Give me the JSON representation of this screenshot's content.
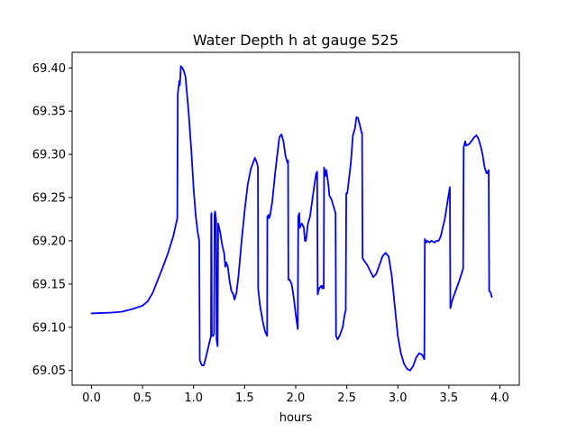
{
  "chart_data": {
    "type": "line",
    "title": "Water Depth h at gauge 525",
    "xlabel": "hours",
    "ylabel": "",
    "xlim": [
      -0.19,
      4.19
    ],
    "ylim": [
      69.033,
      69.418
    ],
    "xticks": [
      0.0,
      0.5,
      1.0,
      1.5,
      2.0,
      2.5,
      3.0,
      3.5,
      4.0
    ],
    "xtick_labels": [
      "0.0",
      "0.5",
      "1.0",
      "1.5",
      "2.0",
      "2.5",
      "3.0",
      "3.5",
      "4.0"
    ],
    "yticks": [
      69.05,
      69.1,
      69.15,
      69.2,
      69.25,
      69.3,
      69.35,
      69.4
    ],
    "ytick_labels": [
      "69.05",
      "69.10",
      "69.15",
      "69.20",
      "69.25",
      "69.30",
      "69.35",
      "69.40"
    ],
    "grid": false,
    "series": [
      {
        "color": "#0000ff",
        "points": [
          [
            0.0,
            69.116
          ],
          [
            0.2,
            69.117
          ],
          [
            0.3,
            69.118
          ],
          [
            0.4,
            69.121
          ],
          [
            0.5,
            69.125
          ],
          [
            0.55,
            69.13
          ],
          [
            0.6,
            69.14
          ],
          [
            0.65,
            69.155
          ],
          [
            0.7,
            69.17
          ],
          [
            0.75,
            69.186
          ],
          [
            0.8,
            69.205
          ],
          [
            0.84,
            69.226
          ],
          [
            0.845,
            69.37
          ],
          [
            0.855,
            69.38
          ],
          [
            0.86,
            69.385
          ],
          [
            0.865,
            69.38
          ],
          [
            0.87,
            69.39
          ],
          [
            0.875,
            69.402
          ],
          [
            0.9,
            69.398
          ],
          [
            0.92,
            69.39
          ],
          [
            0.95,
            69.35
          ],
          [
            0.98,
            69.3
          ],
          [
            1.0,
            69.26
          ],
          [
            1.02,
            69.23
          ],
          [
            1.04,
            69.21
          ],
          [
            1.055,
            69.2
          ],
          [
            1.06,
            69.062
          ],
          [
            1.08,
            69.056
          ],
          [
            1.1,
            69.056
          ],
          [
            1.12,
            69.065
          ],
          [
            1.15,
            69.08
          ],
          [
            1.17,
            69.09
          ],
          [
            1.172,
            69.23
          ],
          [
            1.175,
            69.232
          ],
          [
            1.178,
            69.09
          ],
          [
            1.19,
            69.09
          ],
          [
            1.2,
            69.092
          ],
          [
            1.205,
            69.23
          ],
          [
            1.21,
            69.234
          ],
          [
            1.22,
            69.225
          ],
          [
            1.225,
            69.085
          ],
          [
            1.235,
            69.078
          ],
          [
            1.24,
            69.22
          ],
          [
            1.26,
            69.21
          ],
          [
            1.28,
            69.195
          ],
          [
            1.3,
            69.185
          ],
          [
            1.31,
            69.17
          ],
          [
            1.32,
            69.175
          ],
          [
            1.335,
            69.17
          ],
          [
            1.35,
            69.155
          ],
          [
            1.37,
            69.142
          ],
          [
            1.39,
            69.138
          ],
          [
            1.4,
            69.132
          ],
          [
            1.42,
            69.14
          ],
          [
            1.44,
            69.16
          ],
          [
            1.47,
            69.2
          ],
          [
            1.5,
            69.235
          ],
          [
            1.53,
            69.265
          ],
          [
            1.56,
            69.283
          ],
          [
            1.6,
            69.296
          ],
          [
            1.62,
            69.29
          ],
          [
            1.63,
            69.285
          ],
          [
            1.632,
            69.145
          ],
          [
            1.65,
            69.125
          ],
          [
            1.68,
            69.105
          ],
          [
            1.7,
            69.095
          ],
          [
            1.72,
            69.09
          ],
          [
            1.722,
            69.228
          ],
          [
            1.735,
            69.23
          ],
          [
            1.74,
            69.226
          ],
          [
            1.75,
            69.23
          ],
          [
            1.77,
            69.245
          ],
          [
            1.8,
            69.28
          ],
          [
            1.82,
            69.3
          ],
          [
            1.84,
            69.32
          ],
          [
            1.86,
            69.323
          ],
          [
            1.88,
            69.315
          ],
          [
            1.9,
            69.298
          ],
          [
            1.92,
            69.29
          ],
          [
            1.925,
            69.293
          ],
          [
            1.928,
            69.155
          ],
          [
            1.94,
            69.155
          ],
          [
            1.96,
            69.15
          ],
          [
            1.98,
            69.135
          ],
          [
            2.0,
            69.115
          ],
          [
            2.02,
            69.098
          ],
          [
            2.025,
            69.228
          ],
          [
            2.035,
            69.232
          ],
          [
            2.04,
            69.215
          ],
          [
            2.06,
            69.22
          ],
          [
            2.08,
            69.215
          ],
          [
            2.09,
            69.2
          ],
          [
            2.1,
            69.2
          ],
          [
            2.12,
            69.22
          ],
          [
            2.14,
            69.228
          ],
          [
            2.16,
            69.245
          ],
          [
            2.18,
            69.262
          ],
          [
            2.2,
            69.278
          ],
          [
            2.21,
            69.28
          ],
          [
            2.215,
            69.138
          ],
          [
            2.23,
            69.145
          ],
          [
            2.25,
            69.148
          ],
          [
            2.26,
            69.145
          ],
          [
            2.265,
            69.148
          ],
          [
            2.275,
            69.145
          ],
          [
            2.278,
            69.285
          ],
          [
            2.29,
            69.275
          ],
          [
            2.3,
            69.282
          ],
          [
            2.32,
            69.265
          ],
          [
            2.33,
            69.252
          ],
          [
            2.35,
            69.248
          ],
          [
            2.37,
            69.24
          ],
          [
            2.39,
            69.232
          ],
          [
            2.395,
            69.09
          ],
          [
            2.41,
            69.086
          ],
          [
            2.43,
            69.09
          ],
          [
            2.46,
            69.1
          ],
          [
            2.48,
            69.115
          ],
          [
            2.49,
            69.12
          ],
          [
            2.495,
            69.255
          ],
          [
            2.505,
            69.255
          ],
          [
            2.52,
            69.27
          ],
          [
            2.54,
            69.29
          ],
          [
            2.56,
            69.322
          ],
          [
            2.58,
            69.33
          ],
          [
            2.595,
            69.343
          ],
          [
            2.61,
            69.342
          ],
          [
            2.63,
            69.333
          ],
          [
            2.645,
            69.325
          ],
          [
            2.65,
            69.325
          ],
          [
            2.655,
            69.18
          ],
          [
            2.67,
            69.177
          ],
          [
            2.7,
            69.172
          ],
          [
            2.73,
            69.165
          ],
          [
            2.76,
            69.158
          ],
          [
            2.79,
            69.162
          ],
          [
            2.82,
            69.172
          ],
          [
            2.85,
            69.182
          ],
          [
            2.88,
            69.186
          ],
          [
            2.91,
            69.182
          ],
          [
            2.94,
            69.16
          ],
          [
            2.97,
            69.125
          ],
          [
            3.0,
            69.09
          ],
          [
            3.03,
            69.07
          ],
          [
            3.06,
            69.058
          ],
          [
            3.09,
            69.052
          ],
          [
            3.12,
            69.05
          ],
          [
            3.15,
            69.055
          ],
          [
            3.18,
            69.065
          ],
          [
            3.21,
            69.07
          ],
          [
            3.24,
            69.068
          ],
          [
            3.26,
            69.063
          ],
          [
            3.265,
            69.202
          ],
          [
            3.28,
            69.198
          ],
          [
            3.29,
            69.2
          ],
          [
            3.31,
            69.198
          ],
          [
            3.33,
            69.2
          ],
          [
            3.36,
            69.198
          ],
          [
            3.38,
            69.2
          ],
          [
            3.4,
            69.2
          ],
          [
            3.42,
            69.205
          ],
          [
            3.44,
            69.215
          ],
          [
            3.46,
            69.225
          ],
          [
            3.48,
            69.24
          ],
          [
            3.5,
            69.255
          ],
          [
            3.51,
            69.262
          ],
          [
            3.515,
            69.122
          ],
          [
            3.53,
            69.13
          ],
          [
            3.56,
            69.14
          ],
          [
            3.6,
            69.153
          ],
          [
            3.64,
            69.168
          ],
          [
            3.645,
            69.308
          ],
          [
            3.66,
            69.315
          ],
          [
            3.67,
            69.31
          ],
          [
            3.7,
            69.312
          ],
          [
            3.72,
            69.315
          ],
          [
            3.75,
            69.32
          ],
          [
            3.77,
            69.322
          ],
          [
            3.79,
            69.318
          ],
          [
            3.81,
            69.31
          ],
          [
            3.83,
            69.3
          ],
          [
            3.85,
            69.285
          ],
          [
            3.87,
            69.278
          ],
          [
            3.88,
            69.28
          ],
          [
            3.885,
            69.278
          ],
          [
            3.89,
            69.282
          ],
          [
            3.895,
            69.142
          ],
          [
            3.91,
            69.14
          ],
          [
            3.92,
            69.135
          ]
        ]
      }
    ]
  }
}
